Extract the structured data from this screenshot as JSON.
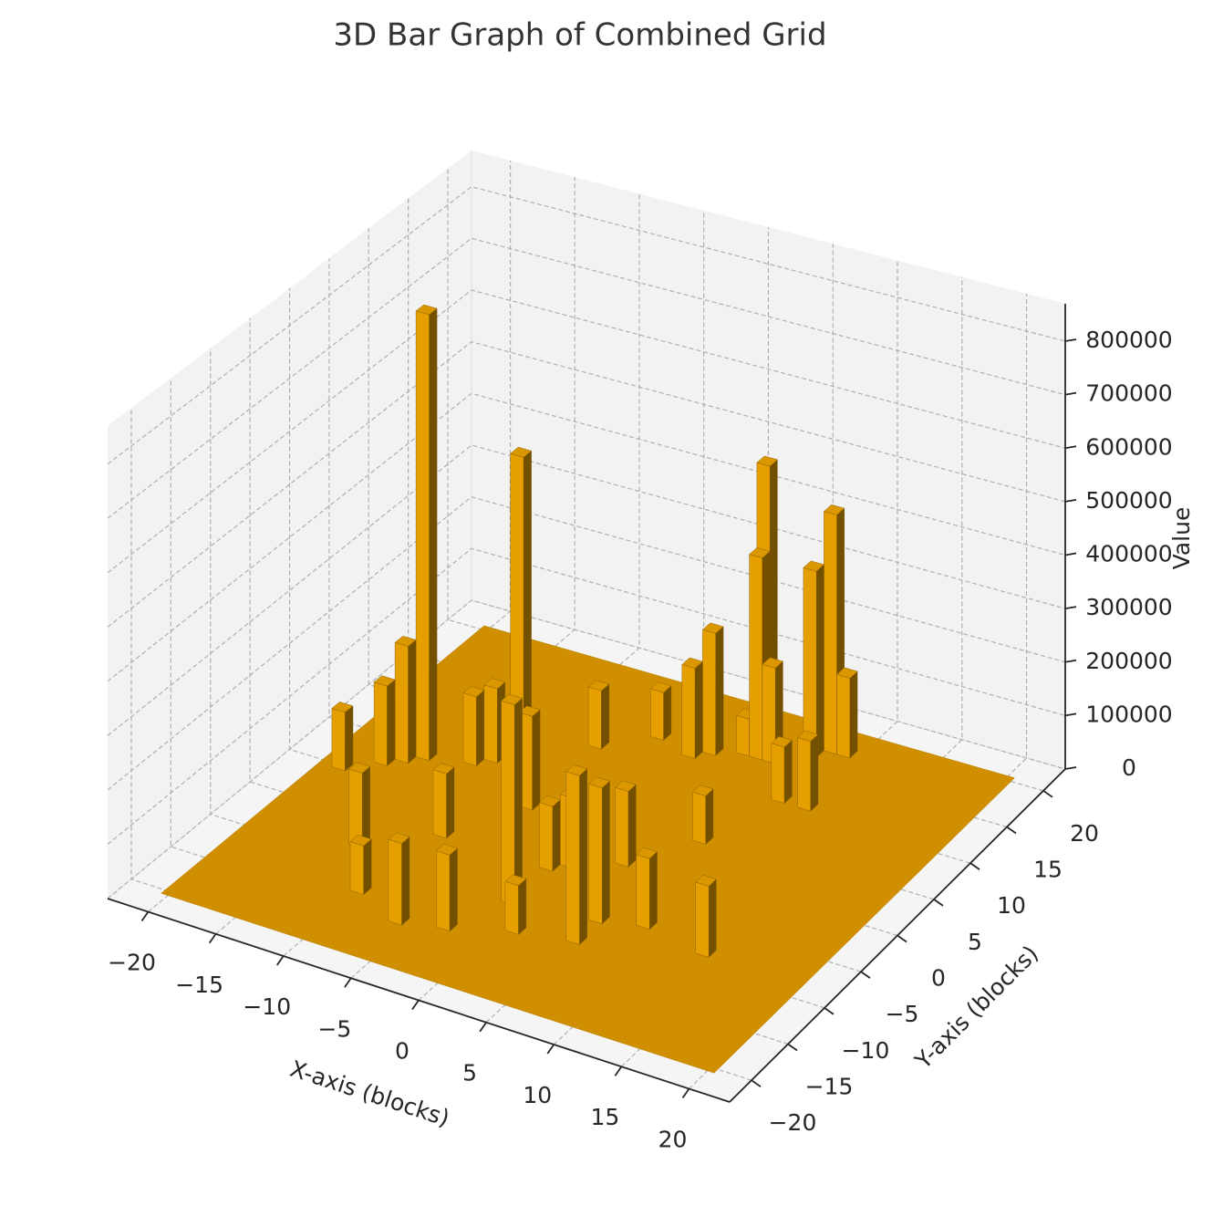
{
  "chart_data": {
    "type": "bar3d",
    "title": "3D Bar Graph of Combined Grid",
    "x_label": "X-axis (blocks)",
    "y_label": "Y-axis (blocks)",
    "z_label": "Value",
    "color": "#E69F00",
    "grid": true,
    "x": [
      -15,
      -9,
      4,
      8,
      7,
      4,
      -16,
      -19,
      -17,
      1,
      9,
      0,
      5,
      -12,
      -11,
      -6,
      -10,
      5,
      1,
      13,
      6,
      8,
      10,
      3,
      -3,
      5,
      8,
      -13,
      -1,
      -6,
      -9,
      3,
      -3,
      -6,
      0,
      -1
    ],
    "y": [
      4,
      6,
      16,
      18,
      17,
      15,
      3,
      0,
      2,
      14,
      18,
      13,
      15,
      5,
      6,
      -15,
      -13,
      -11,
      -12,
      -8,
      4,
      11,
      11,
      15,
      -14,
      -8,
      -7,
      -8,
      -9,
      2,
      -4,
      -1,
      14,
      11,
      -3,
      -4
    ],
    "values": [
      840000,
      590000,
      540000,
      450000,
      350000,
      380000,
      220000,
      110000,
      150000,
      230000,
      150000,
      170000,
      180000,
      130000,
      140000,
      150000,
      90000,
      310000,
      90000,
      130000,
      90000,
      105000,
      130000,
      70000,
      140000,
      250000,
      130000,
      140000,
      370000,
      175000,
      120000,
      140000,
      90000,
      110000,
      130000,
      120000
    ],
    "xlim": [
      -23,
      23
    ],
    "ylim": [
      -23,
      23
    ],
    "zlim": [
      0,
      870000
    ],
    "xticks": [
      {
        "value": -20,
        "label": "−20"
      },
      {
        "value": -15,
        "label": "−15"
      },
      {
        "value": -10,
        "label": "−10"
      },
      {
        "value": -5,
        "label": "−5"
      },
      0,
      5,
      10,
      15,
      20
    ],
    "yticks": [
      {
        "value": -20,
        "label": "−20"
      },
      {
        "value": -15,
        "label": "−15"
      },
      {
        "value": -10,
        "label": "−10"
      },
      {
        "value": -5,
        "label": "−5"
      },
      0,
      5,
      10,
      15,
      20
    ],
    "zticks": [
      0,
      100000,
      200000,
      300000,
      400000,
      500000,
      600000,
      700000,
      800000
    ]
  }
}
